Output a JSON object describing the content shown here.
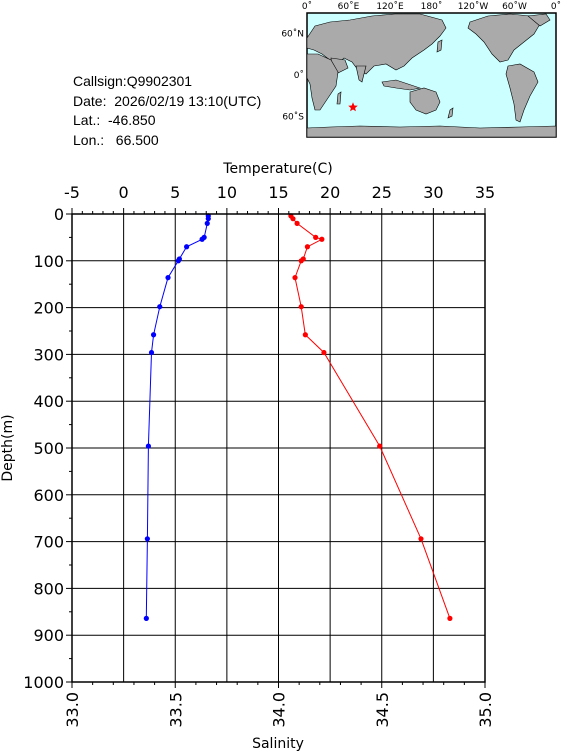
{
  "station": {
    "callsign": "Callsign:Q9902301",
    "date": "Date:  2026/02/19 13:10(UTC)",
    "lat": "Lat.:  -46.850",
    "lon": "Lon.:   66.500"
  },
  "map": {
    "lon_labels": [
      "0˚",
      "60˚E",
      "120˚E",
      "180˚",
      "120˚W",
      "60˚W",
      "0˚"
    ],
    "lat_labels": [
      "60˚N",
      "0˚",
      "60˚S"
    ],
    "station_lon": 66.5,
    "station_lat": -46.85,
    "ocean_color": "#ccffff",
    "land_color": "#aaaaaa",
    "marker_color": "#ff0000"
  },
  "chart_data": {
    "type": "line",
    "top_axis_label": "Temperature(C)",
    "bottom_axis_label": "Salinity",
    "left_axis_label": "Depth(m)",
    "temperature_range": [
      -5,
      35
    ],
    "temperature_ticks": [
      -5,
      0,
      5,
      10,
      15,
      20,
      25,
      30,
      35
    ],
    "salinity_range": [
      33.0,
      35.0
    ],
    "salinity_ticks": [
      "33.0",
      "33.5",
      "34.0",
      "34.5",
      "35.0"
    ],
    "depth_range": [
      0,
      1000
    ],
    "depth_ticks": [
      0,
      100,
      200,
      300,
      400,
      500,
      600,
      700,
      800,
      900,
      1000
    ],
    "grid": true,
    "series": [
      {
        "axis": "temperature",
        "color": "#0000ff",
        "points": [
          {
            "value": 8.2,
            "depth": 4
          },
          {
            "value": 8.2,
            "depth": 10
          },
          {
            "value": 8.1,
            "depth": 20
          },
          {
            "value": 7.8,
            "depth": 50
          },
          {
            "value": 7.6,
            "depth": 54
          },
          {
            "value": 6.1,
            "depth": 70
          },
          {
            "value": 5.4,
            "depth": 96
          },
          {
            "value": 5.3,
            "depth": 100
          },
          {
            "value": 4.3,
            "depth": 136
          },
          {
            "value": 3.5,
            "depth": 198
          },
          {
            "value": 2.9,
            "depth": 258
          },
          {
            "value": 2.7,
            "depth": 296
          },
          {
            "value": 2.4,
            "depth": 496
          },
          {
            "value": 2.3,
            "depth": 694
          },
          {
            "value": 2.2,
            "depth": 864
          }
        ]
      },
      {
        "axis": "salinity",
        "color": "#ff0000",
        "points": [
          {
            "value": 34.06,
            "depth": 4
          },
          {
            "value": 34.07,
            "depth": 10
          },
          {
            "value": 34.09,
            "depth": 20
          },
          {
            "value": 34.18,
            "depth": 50
          },
          {
            "value": 34.21,
            "depth": 54
          },
          {
            "value": 34.14,
            "depth": 70
          },
          {
            "value": 34.12,
            "depth": 96
          },
          {
            "value": 34.11,
            "depth": 100
          },
          {
            "value": 34.08,
            "depth": 136
          },
          {
            "value": 34.11,
            "depth": 198
          },
          {
            "value": 34.13,
            "depth": 258
          },
          {
            "value": 34.22,
            "depth": 296
          },
          {
            "value": 34.49,
            "depth": 496
          },
          {
            "value": 34.69,
            "depth": 694
          },
          {
            "value": 34.83,
            "depth": 864
          }
        ]
      }
    ]
  }
}
